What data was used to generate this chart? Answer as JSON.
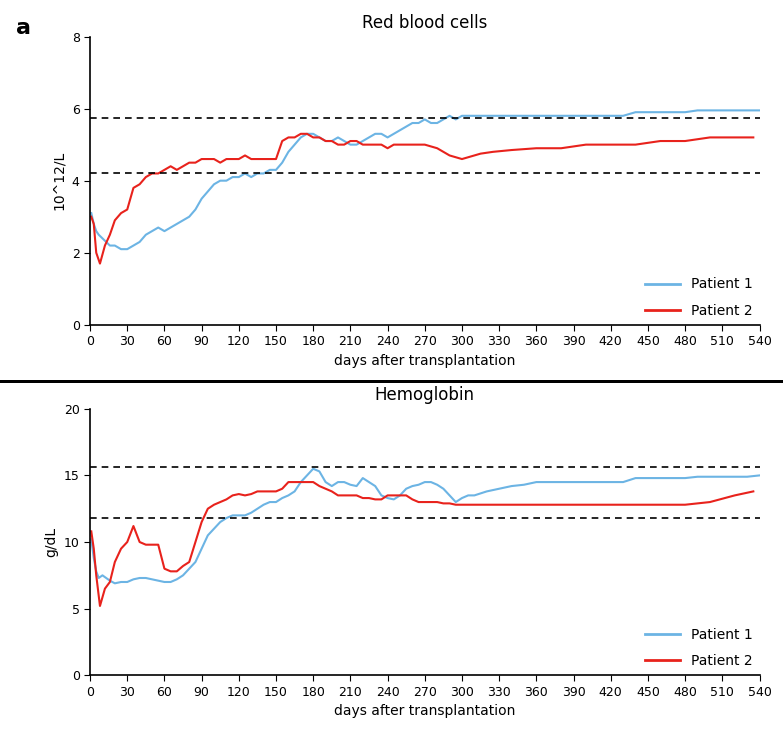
{
  "panel_a": {
    "title": "Red blood cells",
    "ylabel": "10^12/L",
    "xlabel": "days after transplantation",
    "ylim": [
      0,
      8
    ],
    "yticks": [
      0,
      2,
      4,
      6,
      8
    ],
    "xlim": [
      0,
      540
    ],
    "xticks": [
      0,
      30,
      60,
      90,
      120,
      150,
      180,
      210,
      240,
      270,
      300,
      330,
      360,
      390,
      420,
      450,
      480,
      510,
      540
    ],
    "hlines": [
      4.2,
      5.75
    ],
    "patient1_x": [
      1,
      3,
      5,
      7,
      10,
      13,
      16,
      20,
      25,
      30,
      35,
      40,
      45,
      50,
      55,
      60,
      65,
      70,
      75,
      80,
      85,
      90,
      95,
      100,
      105,
      110,
      115,
      120,
      125,
      130,
      135,
      140,
      145,
      150,
      155,
      160,
      165,
      170,
      175,
      180,
      185,
      190,
      195,
      200,
      205,
      210,
      215,
      220,
      225,
      230,
      235,
      240,
      245,
      250,
      255,
      260,
      265,
      270,
      275,
      280,
      285,
      290,
      295,
      300,
      305,
      310,
      320,
      330,
      340,
      350,
      360,
      370,
      380,
      390,
      400,
      410,
      420,
      430,
      440,
      450,
      460,
      470,
      480,
      490,
      500,
      510,
      520,
      530,
      540
    ],
    "patient1_y": [
      3.1,
      2.8,
      2.6,
      2.5,
      2.4,
      2.3,
      2.2,
      2.2,
      2.1,
      2.1,
      2.2,
      2.3,
      2.5,
      2.6,
      2.7,
      2.6,
      2.7,
      2.8,
      2.9,
      3.0,
      3.2,
      3.5,
      3.7,
      3.9,
      4.0,
      4.0,
      4.1,
      4.1,
      4.2,
      4.1,
      4.2,
      4.2,
      4.3,
      4.3,
      4.5,
      4.8,
      5.0,
      5.2,
      5.3,
      5.3,
      5.2,
      5.1,
      5.1,
      5.2,
      5.1,
      5.0,
      5.0,
      5.1,
      5.2,
      5.3,
      5.3,
      5.2,
      5.3,
      5.4,
      5.5,
      5.6,
      5.6,
      5.7,
      5.6,
      5.6,
      5.7,
      5.8,
      5.7,
      5.8,
      5.8,
      5.8,
      5.8,
      5.8,
      5.8,
      5.8,
      5.8,
      5.8,
      5.8,
      5.8,
      5.8,
      5.8,
      5.8,
      5.8,
      5.9,
      5.9,
      5.9,
      5.9,
      5.9,
      5.95,
      5.95,
      5.95,
      5.95,
      5.95,
      5.95
    ],
    "patient2_x": [
      1,
      3,
      5,
      8,
      12,
      16,
      20,
      25,
      30,
      35,
      40,
      45,
      50,
      55,
      60,
      65,
      70,
      75,
      80,
      85,
      90,
      95,
      100,
      105,
      110,
      115,
      120,
      125,
      130,
      135,
      140,
      145,
      150,
      155,
      160,
      165,
      170,
      175,
      180,
      185,
      190,
      195,
      200,
      205,
      210,
      215,
      220,
      225,
      230,
      235,
      240,
      245,
      250,
      255,
      260,
      265,
      270,
      275,
      280,
      285,
      290,
      295,
      300,
      305,
      310,
      315,
      325,
      340,
      360,
      380,
      400,
      420,
      440,
      460,
      480,
      500,
      520,
      535
    ],
    "patient2_y": [
      3.0,
      2.8,
      2.0,
      1.7,
      2.2,
      2.5,
      2.9,
      3.1,
      3.2,
      3.8,
      3.9,
      4.1,
      4.2,
      4.2,
      4.3,
      4.4,
      4.3,
      4.4,
      4.5,
      4.5,
      4.6,
      4.6,
      4.6,
      4.5,
      4.6,
      4.6,
      4.6,
      4.7,
      4.6,
      4.6,
      4.6,
      4.6,
      4.6,
      5.1,
      5.2,
      5.2,
      5.3,
      5.3,
      5.2,
      5.2,
      5.1,
      5.1,
      5.0,
      5.0,
      5.1,
      5.1,
      5.0,
      5.0,
      5.0,
      5.0,
      4.9,
      5.0,
      5.0,
      5.0,
      5.0,
      5.0,
      5.0,
      4.95,
      4.9,
      4.8,
      4.7,
      4.65,
      4.6,
      4.65,
      4.7,
      4.75,
      4.8,
      4.85,
      4.9,
      4.9,
      5.0,
      5.0,
      5.0,
      5.1,
      5.1,
      5.2,
      5.2,
      5.2
    ]
  },
  "panel_b": {
    "title": "Hemoglobin",
    "ylabel": "g/dL",
    "xlabel": "days after transplantation",
    "ylim": [
      0,
      20
    ],
    "yticks": [
      0,
      5,
      10,
      15,
      20
    ],
    "xlim": [
      0,
      540
    ],
    "xticks": [
      0,
      30,
      60,
      90,
      120,
      150,
      180,
      210,
      240,
      270,
      300,
      330,
      360,
      390,
      420,
      450,
      480,
      510,
      540
    ],
    "hlines": [
      11.8,
      15.6
    ],
    "patient1_x": [
      1,
      3,
      5,
      7,
      10,
      13,
      16,
      20,
      25,
      30,
      35,
      40,
      45,
      50,
      55,
      60,
      65,
      70,
      75,
      80,
      85,
      90,
      95,
      100,
      105,
      110,
      115,
      120,
      125,
      130,
      135,
      140,
      145,
      150,
      155,
      160,
      165,
      170,
      175,
      180,
      185,
      190,
      195,
      200,
      205,
      210,
      215,
      220,
      225,
      230,
      235,
      240,
      245,
      250,
      255,
      260,
      265,
      270,
      275,
      280,
      285,
      290,
      295,
      300,
      305,
      310,
      320,
      330,
      340,
      350,
      360,
      370,
      380,
      390,
      400,
      410,
      420,
      430,
      440,
      450,
      460,
      470,
      480,
      490,
      500,
      510,
      520,
      530,
      540
    ],
    "patient1_y": [
      10.2,
      8.8,
      7.8,
      7.3,
      7.5,
      7.3,
      7.1,
      6.9,
      7.0,
      7.0,
      7.2,
      7.3,
      7.3,
      7.2,
      7.1,
      7.0,
      7.0,
      7.2,
      7.5,
      8.0,
      8.5,
      9.5,
      10.5,
      11.0,
      11.5,
      11.8,
      12.0,
      12.0,
      12.0,
      12.2,
      12.5,
      12.8,
      13.0,
      13.0,
      13.3,
      13.5,
      13.8,
      14.5,
      15.0,
      15.5,
      15.3,
      14.5,
      14.2,
      14.5,
      14.5,
      14.3,
      14.2,
      14.8,
      14.5,
      14.2,
      13.5,
      13.3,
      13.2,
      13.5,
      14.0,
      14.2,
      14.3,
      14.5,
      14.5,
      14.3,
      14.0,
      13.5,
      13.0,
      13.3,
      13.5,
      13.5,
      13.8,
      14.0,
      14.2,
      14.3,
      14.5,
      14.5,
      14.5,
      14.5,
      14.5,
      14.5,
      14.5,
      14.5,
      14.8,
      14.8,
      14.8,
      14.8,
      14.8,
      14.9,
      14.9,
      14.9,
      14.9,
      14.9,
      15.0
    ],
    "patient2_x": [
      1,
      3,
      5,
      8,
      12,
      16,
      20,
      25,
      30,
      35,
      40,
      45,
      50,
      55,
      60,
      65,
      70,
      75,
      80,
      85,
      90,
      95,
      100,
      105,
      110,
      115,
      120,
      125,
      130,
      135,
      140,
      145,
      150,
      155,
      160,
      165,
      170,
      175,
      180,
      185,
      190,
      195,
      200,
      205,
      210,
      215,
      220,
      225,
      230,
      235,
      240,
      245,
      250,
      255,
      260,
      265,
      270,
      275,
      280,
      285,
      290,
      295,
      300,
      305,
      310,
      315,
      325,
      340,
      360,
      380,
      400,
      420,
      440,
      460,
      480,
      500,
      520,
      535
    ],
    "patient2_y": [
      10.8,
      9.5,
      7.5,
      5.2,
      6.5,
      7.0,
      8.5,
      9.5,
      10.0,
      11.2,
      10.0,
      9.8,
      9.8,
      9.8,
      8.0,
      7.8,
      7.8,
      8.2,
      8.5,
      10.0,
      11.5,
      12.5,
      12.8,
      13.0,
      13.2,
      13.5,
      13.6,
      13.5,
      13.6,
      13.8,
      13.8,
      13.8,
      13.8,
      14.0,
      14.5,
      14.5,
      14.5,
      14.5,
      14.5,
      14.2,
      14.0,
      13.8,
      13.5,
      13.5,
      13.5,
      13.5,
      13.3,
      13.3,
      13.2,
      13.2,
      13.5,
      13.5,
      13.5,
      13.5,
      13.2,
      13.0,
      13.0,
      13.0,
      13.0,
      12.9,
      12.9,
      12.8,
      12.8,
      12.8,
      12.8,
      12.8,
      12.8,
      12.8,
      12.8,
      12.8,
      12.8,
      12.8,
      12.8,
      12.8,
      12.8,
      13.0,
      13.5,
      13.8
    ]
  },
  "patient1_color": "#6CB4E4",
  "patient2_color": "#E8221C",
  "fig_bg": "#000000",
  "panel_a_bg": "#FFFFFF",
  "panel_b_bg": "#FFFFFF",
  "panel_label_fontsize": 16,
  "title_fontsize": 12,
  "axis_label_fontsize": 10,
  "tick_fontsize": 9,
  "legend_fontsize": 10,
  "black_band_color": "#000000"
}
